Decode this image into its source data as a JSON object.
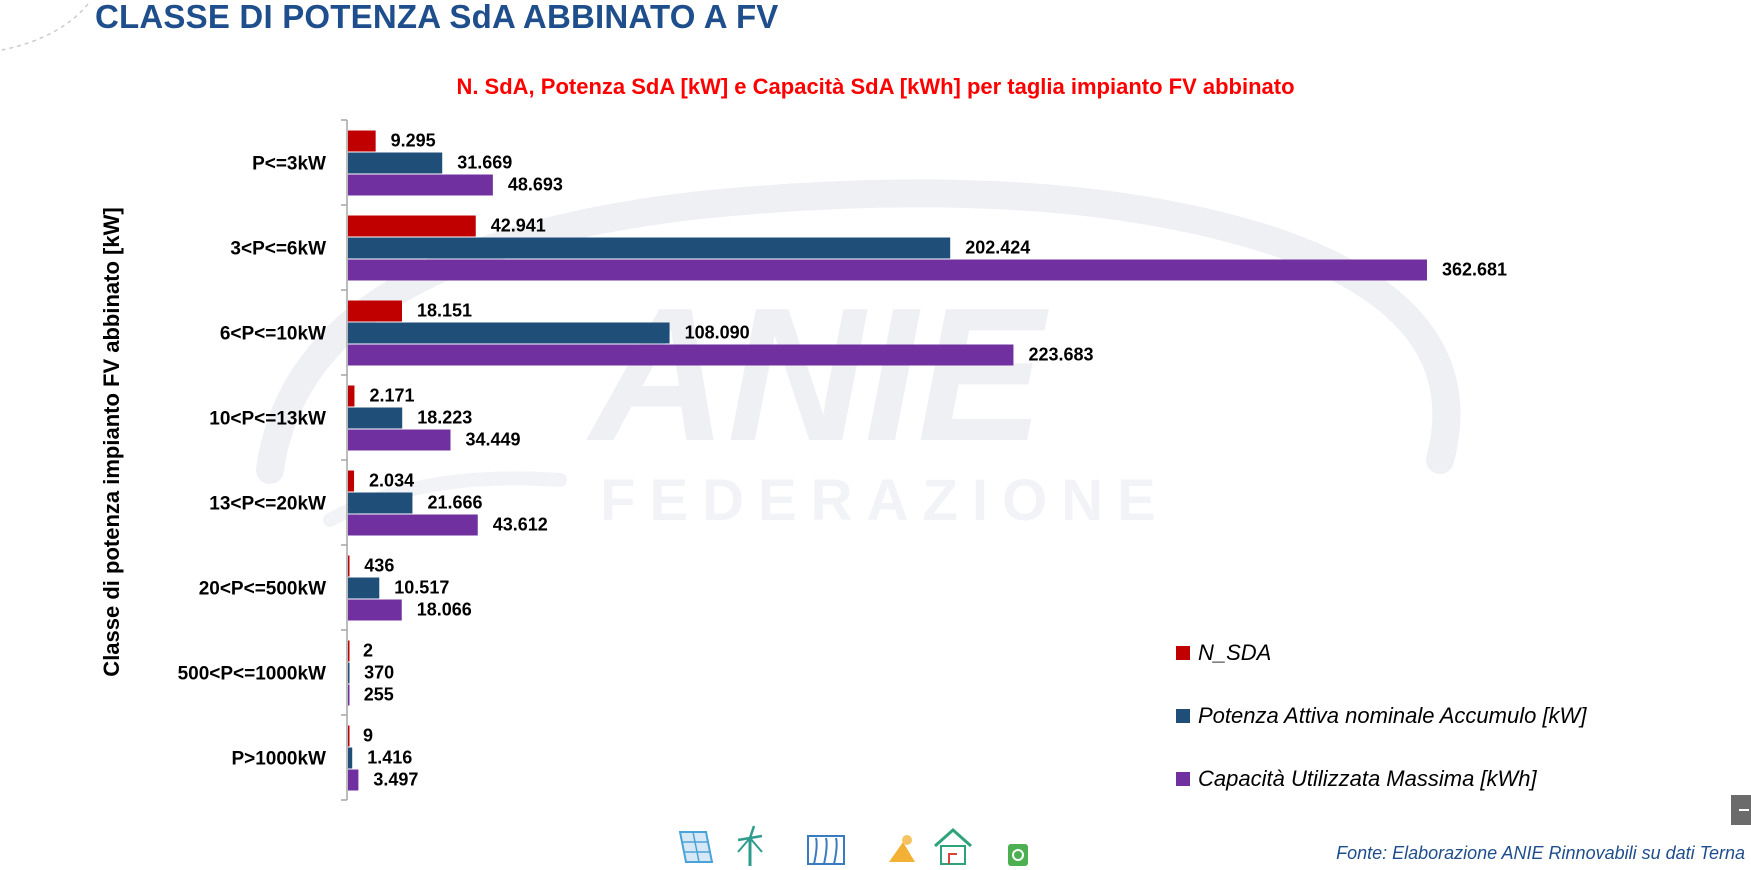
{
  "page": {
    "title": "CLASSE DI POTENZA SdA ABBINATO A FV",
    "source": "Fonte: Elaborazione ANIE Rinnovabili su dati Terna"
  },
  "watermark": {
    "main": "ANIE",
    "sub": "FEDERAZIONE"
  },
  "footer_icons": [
    "solar-panel-icon",
    "wind-turbine-icon",
    "hydro-dam-icon",
    "geothermal-icon",
    "smart-home-icon",
    "recycle-icon"
  ],
  "chart_data": {
    "type": "bar",
    "orientation": "horizontal",
    "title": "N. SdA, Potenza SdA [kW] e Capacità SdA [kWh] per taglia impianto FV abbinato",
    "ylabel": "Classe di potenza impianto FV abbinato [kW]",
    "xlabel": "",
    "grid": false,
    "legend_position": "bottom-right",
    "xlim": [
      0,
      400000
    ],
    "categories": [
      "P<=3kW",
      "3<P<=6kW",
      "6<P<=10kW",
      "10<P<=13kW",
      "13<P<=20kW",
      "20<P<=500kW",
      "500<P<=1000kW",
      "P>1000kW"
    ],
    "series": [
      {
        "name": "N_SDA",
        "color": "#c00000",
        "values": [
          9295,
          42941,
          18151,
          2171,
          2034,
          436,
          2,
          9
        ],
        "labels": [
          "9.295",
          "42.941",
          "18.151",
          "2.171",
          "2.034",
          "436",
          "2",
          "9"
        ]
      },
      {
        "name": "Potenza Attiva nominale Accumulo [kW]",
        "color": "#1f4e79",
        "values": [
          31669,
          202424,
          108090,
          18223,
          21666,
          10517,
          370,
          1416
        ],
        "labels": [
          "31.669",
          "202.424",
          "108.090",
          "18.223",
          "21.666",
          "10.517",
          "370",
          "1.416"
        ]
      },
      {
        "name": "Capacità Utilizzata Massima [kWh]",
        "color": "#7030a0",
        "values": [
          48693,
          362681,
          223683,
          34449,
          43612,
          18066,
          255,
          3497
        ],
        "labels": [
          "48.693",
          "362.681",
          "223.683",
          "34.449",
          "43.612",
          "18.066",
          "255",
          "3.497"
        ]
      }
    ]
  }
}
